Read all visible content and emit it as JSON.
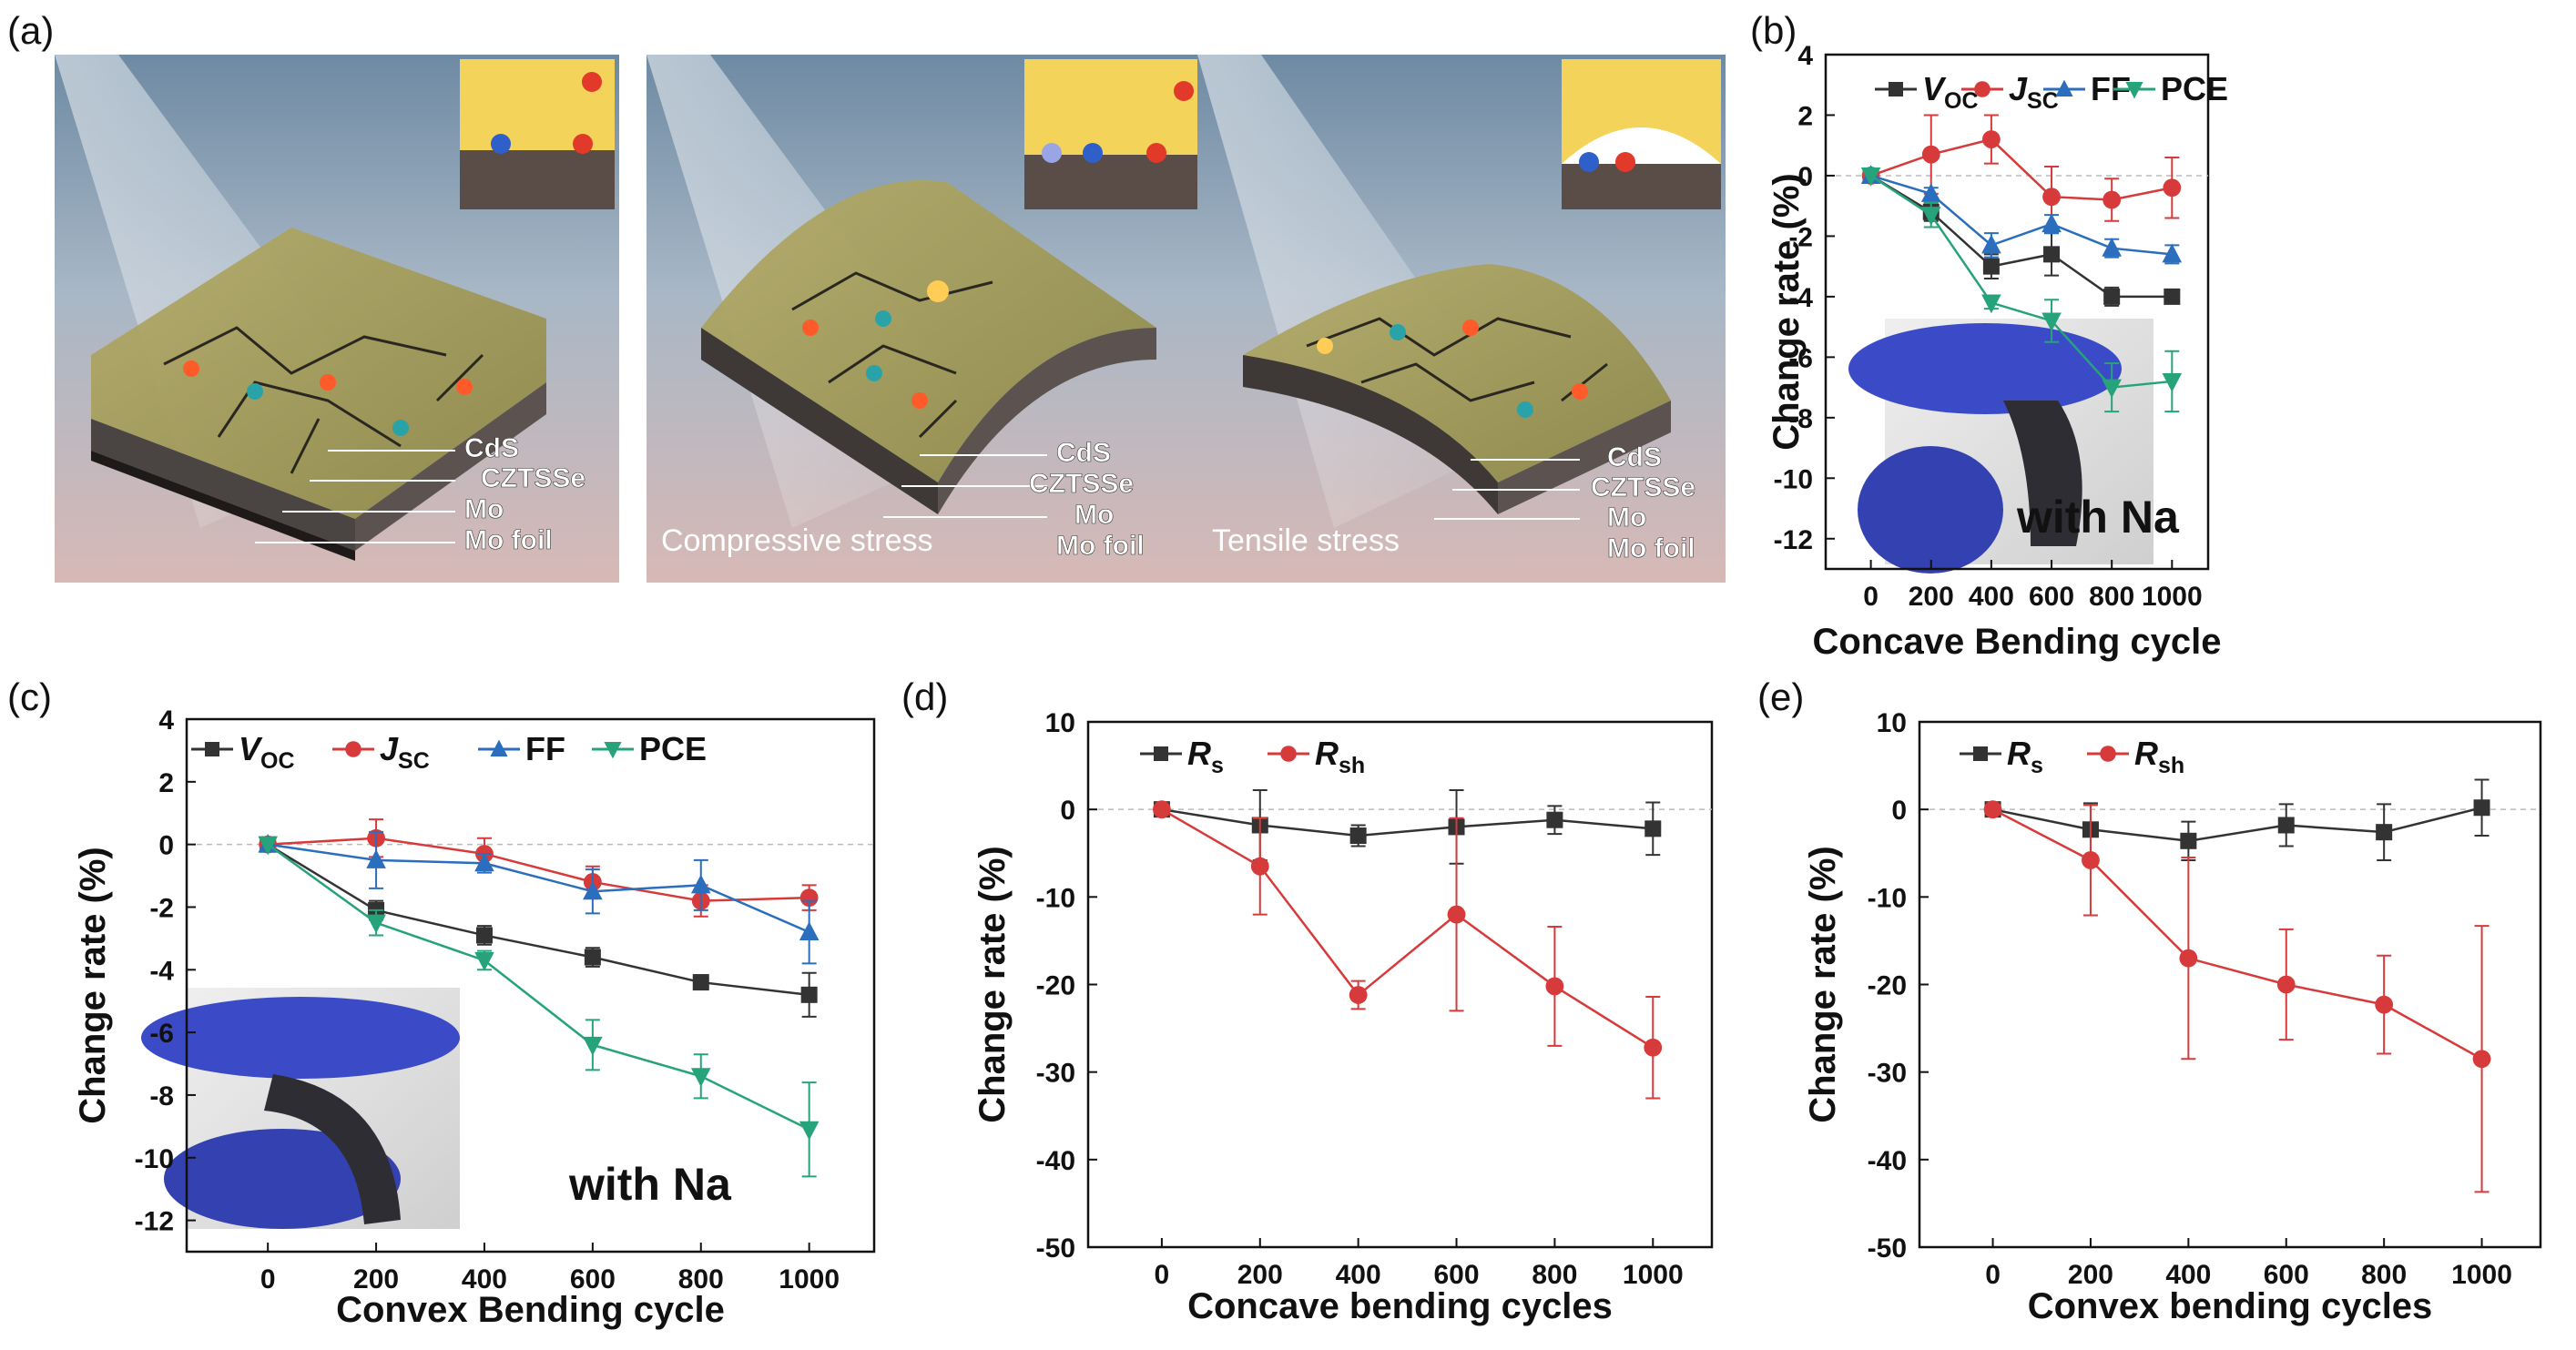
{
  "figure": {
    "panel_a": {
      "letter": "(a)",
      "illustrations": [
        {
          "layers": [
            "CdS",
            "CZTSSe",
            "Mo",
            "Mo foil"
          ],
          "caption": ""
        },
        {
          "layers": [
            "CdS",
            "CZTSSe",
            "Mo",
            "Mo foil"
          ],
          "caption": "Compressive stress"
        },
        {
          "layers": [
            "CdS",
            "CZTSSe",
            "Mo",
            "Mo foil"
          ],
          "caption": "Tensile stress"
        }
      ]
    }
  },
  "chart_data": [
    {
      "id": "b",
      "letter": "(b)",
      "type": "line",
      "xlabel": "Concave Bending cycle",
      "ylabel": "Change rate (%)",
      "x": [
        0,
        200,
        400,
        600,
        800,
        1000
      ],
      "xticks": [
        "0",
        "200",
        "400",
        "600",
        "800",
        "1000"
      ],
      "ylim": [
        -13,
        4
      ],
      "yticks": [
        "4",
        "2",
        "0",
        "-2",
        "-4",
        "-6",
        "-8",
        "-10",
        "-12"
      ],
      "annotation": "with Na",
      "series": [
        {
          "name": "VOC",
          "label_main": "V",
          "label_sub": "OC",
          "italic": true,
          "color": "#333333",
          "marker": "square",
          "values": [
            0,
            -1.2,
            -3.0,
            -2.6,
            -4.0,
            -4.0
          ],
          "errors": [
            0,
            0.3,
            0.4,
            0.7,
            0.3,
            0.1
          ]
        },
        {
          "name": "JSC",
          "label_main": "J",
          "label_sub": "SC",
          "italic": true,
          "color": "#d63a3a",
          "marker": "circle",
          "values": [
            0,
            0.7,
            1.2,
            -0.7,
            -0.8,
            -0.4
          ],
          "errors": [
            0,
            1.3,
            0.8,
            1.0,
            0.7,
            1.0
          ]
        },
        {
          "name": "FF",
          "label_main": "FF",
          "label_sub": "",
          "italic": false,
          "color": "#2a6ebd",
          "marker": "triangle-up",
          "values": [
            0,
            -0.6,
            -2.3,
            -1.6,
            -2.4,
            -2.6
          ],
          "errors": [
            0,
            0.2,
            0.4,
            0.3,
            0.3,
            0.3
          ]
        },
        {
          "name": "PCE",
          "label_main": "PCE",
          "label_sub": "",
          "italic": false,
          "color": "#27a37b",
          "marker": "triangle-down",
          "values": [
            0,
            -1.3,
            -4.2,
            -4.8,
            -7.0,
            -6.8
          ],
          "errors": [
            0,
            0.4,
            0.2,
            0.7,
            0.8,
            1.0
          ]
        }
      ]
    },
    {
      "id": "c",
      "letter": "(c)",
      "type": "line",
      "xlabel": "Convex Bending cycle",
      "ylabel": "Change rate (%)",
      "x": [
        0,
        200,
        400,
        600,
        800,
        1000
      ],
      "xticks": [
        "0",
        "200",
        "400",
        "600",
        "800",
        "1000"
      ],
      "ylim": [
        -13,
        4
      ],
      "yticks": [
        "4",
        "2",
        "0",
        "-2",
        "-4",
        "-6",
        "-8",
        "-10",
        "-12"
      ],
      "annotation": "with Na",
      "series": [
        {
          "name": "VOC",
          "label_main": "V",
          "label_sub": "OC",
          "italic": true,
          "color": "#333333",
          "marker": "square",
          "values": [
            0,
            -2.1,
            -2.9,
            -3.6,
            -4.4,
            -4.8
          ],
          "errors": [
            0,
            0.3,
            0.3,
            0.3,
            0.2,
            0.7
          ]
        },
        {
          "name": "JSC",
          "label_main": "J",
          "label_sub": "SC",
          "italic": true,
          "color": "#d63a3a",
          "marker": "circle",
          "values": [
            0,
            0.2,
            -0.3,
            -1.2,
            -1.8,
            -1.7
          ],
          "errors": [
            0,
            0.6,
            0.5,
            0.5,
            0.5,
            0.4
          ]
        },
        {
          "name": "FF",
          "label_main": "FF",
          "label_sub": "",
          "italic": false,
          "color": "#2a6ebd",
          "marker": "triangle-up",
          "values": [
            0,
            -0.5,
            -0.6,
            -1.5,
            -1.3,
            -2.8
          ],
          "errors": [
            0,
            0.9,
            0.3,
            0.7,
            0.8,
            1.0
          ]
        },
        {
          "name": "PCE",
          "label_main": "PCE",
          "label_sub": "",
          "italic": false,
          "color": "#27a37b",
          "marker": "triangle-down",
          "values": [
            0,
            -2.5,
            -3.7,
            -6.4,
            -7.4,
            -9.1
          ],
          "errors": [
            0,
            0.4,
            0.3,
            0.8,
            0.7,
            1.5
          ]
        }
      ]
    },
    {
      "id": "d",
      "letter": "(d)",
      "type": "line",
      "xlabel": "Concave bending cycles",
      "ylabel": "Change rate (%)",
      "x": [
        0,
        200,
        400,
        600,
        800,
        1000
      ],
      "xticks": [
        "0",
        "200",
        "400",
        "600",
        "800",
        "1000"
      ],
      "ylim": [
        -50,
        10
      ],
      "yticks": [
        "10",
        "0",
        "-10",
        "-20",
        "-30",
        "-40",
        "-50"
      ],
      "annotation": "",
      "series": [
        {
          "name": "Rs",
          "label_main": "R",
          "label_sub": "s",
          "italic": true,
          "color": "#333333",
          "marker": "square",
          "values": [
            0,
            -1.8,
            -3.0,
            -2.0,
            -1.2,
            -2.2
          ],
          "errors": [
            0,
            4.0,
            1.2,
            4.2,
            1.6,
            3.0
          ]
        },
        {
          "name": "Rsh",
          "label_main": "R",
          "label_sub": "sh",
          "italic": true,
          "color": "#d63a3a",
          "marker": "circle",
          "values": [
            0,
            -6.5,
            -21.2,
            -12.0,
            -20.2,
            -27.2
          ],
          "errors": [
            0,
            5.5,
            1.6,
            11.0,
            6.8,
            5.8
          ]
        }
      ]
    },
    {
      "id": "e",
      "letter": "(e)",
      "type": "line",
      "xlabel": "Convex bending cycles",
      "ylabel": "Change rate (%)",
      "x": [
        0,
        200,
        400,
        600,
        800,
        1000
      ],
      "xticks": [
        "0",
        "200",
        "400",
        "600",
        "800",
        "1000"
      ],
      "ylim": [
        -50,
        10
      ],
      "yticks": [
        "10",
        "0",
        "-10",
        "-20",
        "-30",
        "-40",
        "-50"
      ],
      "annotation": "",
      "series": [
        {
          "name": "Rs",
          "label_main": "R",
          "label_sub": "s",
          "italic": true,
          "color": "#333333",
          "marker": "square",
          "values": [
            0,
            -2.3,
            -3.6,
            -1.8,
            -2.6,
            0.2
          ],
          "errors": [
            0,
            3.0,
            2.2,
            2.4,
            3.2,
            3.2
          ]
        },
        {
          "name": "Rsh",
          "label_main": "R",
          "label_sub": "sh",
          "italic": true,
          "color": "#d63a3a",
          "marker": "circle",
          "values": [
            0,
            -5.8,
            -17.0,
            -20.0,
            -22.3,
            -28.5
          ],
          "errors": [
            0,
            6.3,
            11.5,
            6.3,
            5.6,
            15.2
          ]
        }
      ]
    }
  ]
}
